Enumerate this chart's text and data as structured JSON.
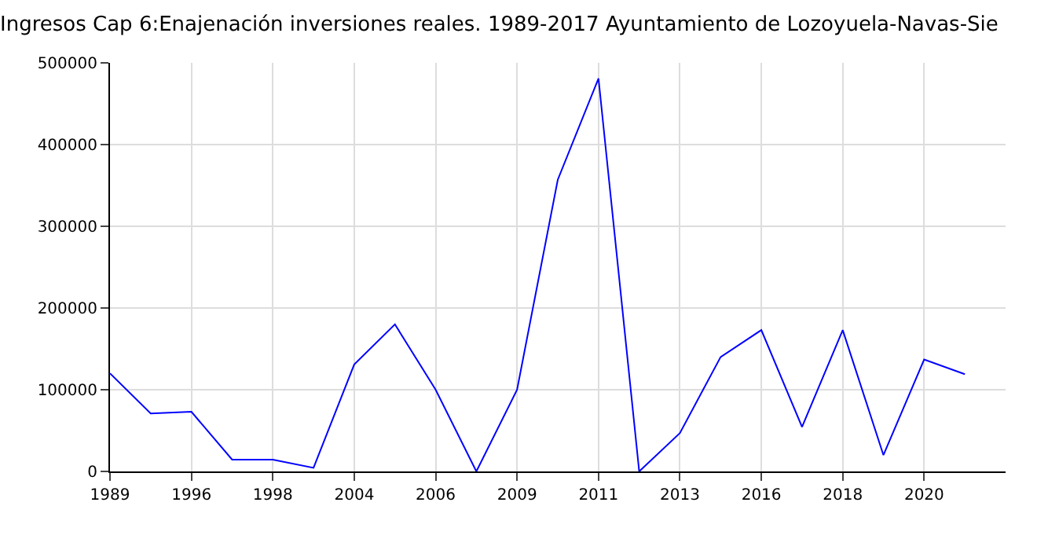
{
  "chart_data": {
    "type": "line",
    "title": "Ingresos Cap 6:Enajenación inversiones reales. 1989-2017 Ayuntamiento de Lozoyuela-Navas-Sie",
    "categories": [
      "1989",
      null,
      "1996",
      null,
      "1998",
      null,
      "2004",
      null,
      "2006",
      null,
      "2009",
      null,
      "2011",
      null,
      "2013",
      null,
      "2016",
      null,
      "2018",
      null,
      "2020",
      null,
      null
    ],
    "series": [
      {
        "color": "#0000ff",
        "values": [
          120000,
          71000,
          73000,
          14500,
          14500,
          4400,
          131000,
          180000,
          100000,
          0,
          100000,
          357000,
          481000,
          0,
          47000,
          140000,
          173000,
          54500,
          173000,
          20000,
          137000,
          119000,
          null
        ]
      }
    ],
    "ylim": [
      0,
      500000
    ],
    "yticks": [
      0,
      100000,
      200000,
      300000,
      400000,
      500000
    ],
    "grid": true,
    "legend": false,
    "marker": "none",
    "line_style": "solid"
  }
}
